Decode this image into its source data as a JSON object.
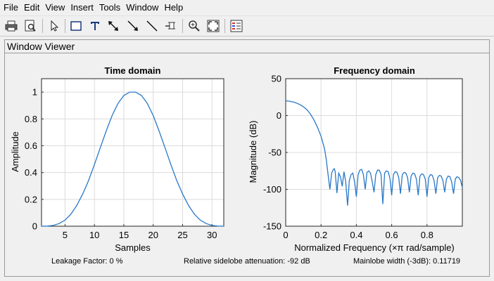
{
  "menubar": {
    "items": [
      "File",
      "Edit",
      "View",
      "Insert",
      "Tools",
      "Window",
      "Help"
    ]
  },
  "toolbar": {
    "buttons": [
      "print-icon",
      "print-preview-icon",
      "select-arrow-icon",
      "rectangle-icon",
      "text-insert-icon",
      "double-arrow-icon",
      "arrow-icon",
      "line-icon",
      "pin-icon",
      "zoom-in-icon",
      "fit-to-view-icon",
      "legend-icon"
    ]
  },
  "panel": {
    "title": "Window Viewer"
  },
  "colors": {
    "line": "#2878c8",
    "axes_bg": "#ffffff",
    "grid": "#dcdcdc"
  },
  "chart_data": [
    {
      "type": "line",
      "title": "Time domain",
      "xlabel": "Samples",
      "ylabel": "Amplitude",
      "xlim": [
        1,
        32
      ],
      "ylim": [
        0,
        1.1
      ],
      "xticks": [
        5,
        10,
        15,
        20,
        25,
        30
      ],
      "yticks": [
        0,
        0.2,
        0.4,
        0.6,
        0.8,
        1
      ],
      "ytick_labels": [
        "0",
        "0.2",
        "0.4",
        "0.6",
        "0.8",
        "1"
      ],
      "grid": true,
      "series": [
        {
          "x": [
            1,
            2,
            3,
            4,
            5,
            6,
            7,
            8,
            9,
            10,
            11,
            12,
            13,
            14,
            15,
            16,
            17,
            18,
            19,
            20,
            21,
            22,
            23,
            24,
            25,
            26,
            27,
            28,
            29,
            30,
            31,
            32
          ],
          "y": [
            0.0,
            0.001,
            0.006,
            0.02,
            0.045,
            0.09,
            0.155,
            0.24,
            0.34,
            0.46,
            0.585,
            0.71,
            0.825,
            0.915,
            0.975,
            1.0,
            1.0,
            0.975,
            0.915,
            0.825,
            0.71,
            0.585,
            0.46,
            0.34,
            0.24,
            0.155,
            0.09,
            0.045,
            0.02,
            0.006,
            0.001,
            0.0
          ]
        }
      ]
    },
    {
      "type": "line",
      "title": "Frequency domain",
      "xlabel": "Normalized Frequency  (×π rad/sample)",
      "ylabel": "Magnitude (dB)",
      "xlim": [
        0,
        1
      ],
      "ylim": [
        -150,
        50
      ],
      "xticks": [
        0,
        0.2,
        0.4,
        0.6,
        0.8
      ],
      "xtick_labels": [
        "0",
        "0.2",
        "0.4",
        "0.6",
        "0.8"
      ],
      "yticks": [
        -150,
        -100,
        -50,
        0,
        50
      ],
      "ytick_labels": [
        "-150",
        "-100",
        "-50",
        "0",
        "50"
      ],
      "grid": true,
      "series": [
        {
          "x": [
            0,
            0.02,
            0.05,
            0.08,
            0.1,
            0.12,
            0.14,
            0.16,
            0.18,
            0.2,
            0.22,
            0.23,
            0.24,
            0.25,
            0.26,
            0.27,
            0.275,
            0.28,
            0.29,
            0.3,
            0.31,
            0.32,
            0.33,
            0.34,
            0.35,
            0.36,
            0.37,
            0.38,
            0.39,
            0.4,
            0.41,
            0.42,
            0.43,
            0.44,
            0.45,
            0.46,
            0.47,
            0.48,
            0.49,
            0.5,
            0.51,
            0.52,
            0.53,
            0.54,
            0.55,
            0.56,
            0.57,
            0.58,
            0.59,
            0.6,
            0.61,
            0.62,
            0.63,
            0.64,
            0.65,
            0.66,
            0.67,
            0.68,
            0.69,
            0.7,
            0.71,
            0.72,
            0.73,
            0.74,
            0.75,
            0.76,
            0.77,
            0.78,
            0.79,
            0.8,
            0.81,
            0.82,
            0.83,
            0.84,
            0.85,
            0.86,
            0.87,
            0.88,
            0.89,
            0.9,
            0.91,
            0.92,
            0.93,
            0.94,
            0.95,
            0.96,
            0.97,
            0.98,
            0.99,
            1.0
          ],
          "y": [
            20,
            19.5,
            18,
            15,
            12,
            8,
            2,
            -6,
            -16,
            -28,
            -45,
            -60,
            -80,
            -100,
            -78,
            -73,
            -72,
            -76,
            -105,
            -78,
            -83,
            -96,
            -76,
            -90,
            -122,
            -88,
            -80,
            -78,
            -90,
            -110,
            -80,
            -74,
            -73,
            -80,
            -100,
            -77,
            -75,
            -78,
            -90,
            -104,
            -80,
            -74,
            -74,
            -80,
            -120,
            -78,
            -75,
            -76,
            -85,
            -108,
            -80,
            -76,
            -77,
            -84,
            -106,
            -80,
            -77,
            -78,
            -84,
            -104,
            -82,
            -78,
            -79,
            -86,
            -108,
            -82,
            -79,
            -80,
            -86,
            -110,
            -84,
            -80,
            -81,
            -88,
            -106,
            -84,
            -81,
            -82,
            -88,
            -104,
            -86,
            -82,
            -83,
            -90,
            -106,
            -86,
            -83,
            -84,
            -88,
            -98
          ]
        }
      ]
    }
  ],
  "status": {
    "leakage": "Leakage Factor: 0 %",
    "sidelobe": "Relative sidelobe attenuation: -92 dB",
    "mainlobe": "Mainlobe width (-3dB): 0.11719"
  }
}
